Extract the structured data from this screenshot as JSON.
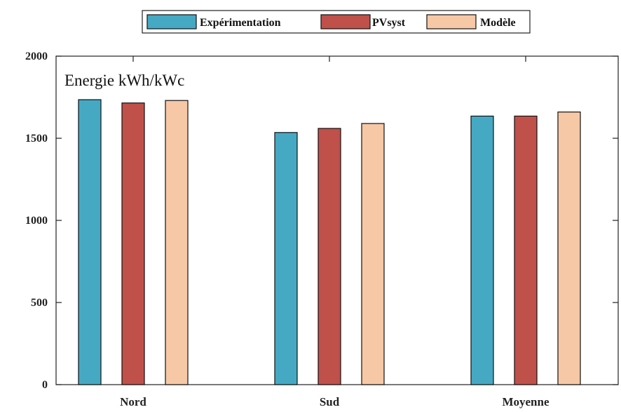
{
  "chart_data": {
    "type": "bar",
    "title": "Energie kWh/kWc",
    "categories": [
      "Nord",
      "Sud",
      "Moyenne"
    ],
    "series": [
      {
        "name": "Expérimentation",
        "color": "#45a9c4",
        "values": [
          1735,
          1535,
          1635
        ]
      },
      {
        "name": "PVsyst",
        "color": "#c0504a",
        "values": [
          1715,
          1560,
          1635
        ]
      },
      {
        "name": "Modèle",
        "color": "#f7c8a6",
        "values": [
          1730,
          1590,
          1660
        ]
      }
    ],
    "ylim": [
      0,
      2000
    ],
    "yticks": [
      0,
      500,
      1000,
      1500,
      2000
    ],
    "legend_position": "top-center",
    "grid": false
  }
}
